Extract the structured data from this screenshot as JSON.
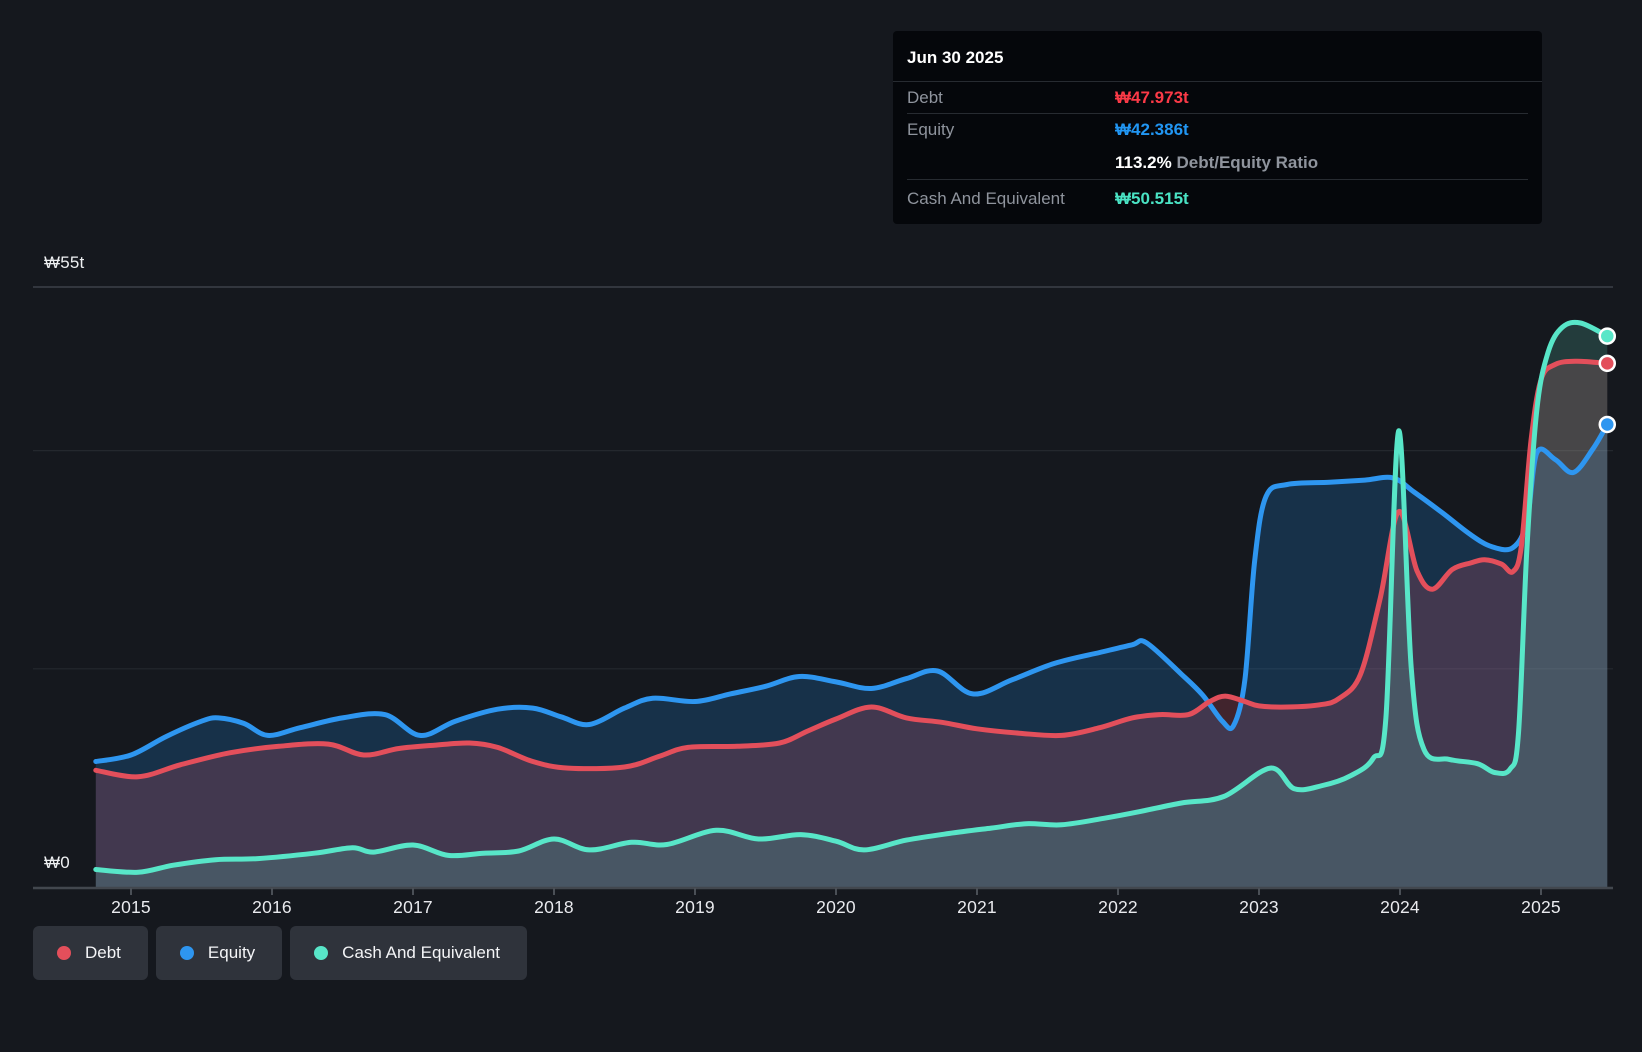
{
  "tooltip": {
    "title": "Jun 30 2025",
    "debt_label": "Debt",
    "debt_value": "₩47.973t",
    "equity_label": "Equity",
    "equity_value": "₩42.386t",
    "ratio_value": "113.2%",
    "ratio_label": "Debt/Equity Ratio",
    "cash_label": "Cash And Equivalent",
    "cash_value": "₩50.515t"
  },
  "legend": {
    "items": [
      {
        "id": "debt",
        "label": "Debt"
      },
      {
        "id": "equity",
        "label": "Equity"
      },
      {
        "id": "cash",
        "label": "Cash And Equivalent"
      }
    ]
  },
  "colors": {
    "background": "#15181e",
    "debt_line": "#e34f5b",
    "equity_line": "#2e96f0",
    "cash_line": "#58e6c8",
    "debt_fill": "rgba(224,80,100,0.22)",
    "equity_fill": "rgba(33,150,243,0.20)",
    "cash_fill": "rgba(100,225,200,0.18)",
    "debt_text": "#fb3a47",
    "equity_text": "#2196f3",
    "cash_text": "#4ae3c4",
    "grid_major": "#3c4148",
    "grid_minor": "#24282e",
    "axis_line": "#42474e",
    "marker_ring": "#ffffff"
  },
  "chart_data": {
    "type": "area",
    "xlabel": "",
    "ylabel": "₩ (trillions)",
    "xlim": [
      2014.72,
      2025.52
    ],
    "ylim": [
      0,
      55
    ],
    "grid": true,
    "legend_position": "bottom-left",
    "x_ticks": [
      2015,
      2016,
      2017,
      2018,
      2019,
      2020,
      2021,
      2022,
      2023,
      2024,
      2025
    ],
    "y_axis_labels": [
      {
        "label": "₩55t",
        "value": 55
      },
      {
        "label": "₩0",
        "value": 0
      }
    ],
    "gridline_values": [
      55,
      40,
      20
    ],
    "series": [
      {
        "name": "Equity",
        "color_key": "equity",
        "points": [
          [
            2014.75,
            11.5
          ],
          [
            2015.0,
            12.1
          ],
          [
            2015.25,
            13.8
          ],
          [
            2015.5,
            15.2
          ],
          [
            2015.62,
            15.5
          ],
          [
            2015.8,
            15.0
          ],
          [
            2015.97,
            13.9
          ],
          [
            2016.2,
            14.6
          ],
          [
            2016.5,
            15.5
          ],
          [
            2016.8,
            15.8
          ],
          [
            2017.05,
            13.9
          ],
          [
            2017.3,
            15.2
          ],
          [
            2017.6,
            16.3
          ],
          [
            2017.85,
            16.4
          ],
          [
            2018.05,
            15.6
          ],
          [
            2018.25,
            14.9
          ],
          [
            2018.5,
            16.4
          ],
          [
            2018.7,
            17.3
          ],
          [
            2019.0,
            17.0
          ],
          [
            2019.25,
            17.7
          ],
          [
            2019.5,
            18.4
          ],
          [
            2019.74,
            19.3
          ],
          [
            2020.0,
            18.8
          ],
          [
            2020.25,
            18.2
          ],
          [
            2020.5,
            19.1
          ],
          [
            2020.72,
            19.8
          ],
          [
            2020.97,
            17.7
          ],
          [
            2021.25,
            19.0
          ],
          [
            2021.55,
            20.5
          ],
          [
            2021.87,
            21.5
          ],
          [
            2022.1,
            22.2
          ],
          [
            2022.2,
            22.4
          ],
          [
            2022.45,
            19.5
          ],
          [
            2022.6,
            17.6
          ],
          [
            2022.74,
            15.2
          ],
          [
            2022.82,
            14.8
          ],
          [
            2022.9,
            19.0
          ],
          [
            2022.97,
            30.0
          ],
          [
            2023.05,
            35.8
          ],
          [
            2023.2,
            36.9
          ],
          [
            2023.5,
            37.1
          ],
          [
            2023.75,
            37.3
          ],
          [
            2023.95,
            37.5
          ],
          [
            2024.1,
            36.2
          ],
          [
            2024.3,
            34.3
          ],
          [
            2024.5,
            32.3
          ],
          [
            2024.65,
            31.2
          ],
          [
            2024.8,
            31.1
          ],
          [
            2024.9,
            33.5
          ],
          [
            2024.97,
            39.8
          ],
          [
            2025.1,
            39.2
          ],
          [
            2025.23,
            38.0
          ],
          [
            2025.37,
            40.2
          ],
          [
            2025.47,
            42.4
          ]
        ]
      },
      {
        "name": "Debt",
        "color_key": "debt",
        "points": [
          [
            2014.75,
            10.7
          ],
          [
            2015.05,
            10.1
          ],
          [
            2015.35,
            11.2
          ],
          [
            2015.7,
            12.3
          ],
          [
            2016.05,
            12.9
          ],
          [
            2016.4,
            13.1
          ],
          [
            2016.65,
            12.1
          ],
          [
            2016.9,
            12.7
          ],
          [
            2017.15,
            13.0
          ],
          [
            2017.4,
            13.2
          ],
          [
            2017.6,
            12.8
          ],
          [
            2017.85,
            11.5
          ],
          [
            2018.1,
            10.9
          ],
          [
            2018.5,
            11.0
          ],
          [
            2018.75,
            12.0
          ],
          [
            2018.95,
            12.8
          ],
          [
            2019.3,
            12.9
          ],
          [
            2019.6,
            13.2
          ],
          [
            2019.8,
            14.3
          ],
          [
            2020.0,
            15.4
          ],
          [
            2020.25,
            16.5
          ],
          [
            2020.5,
            15.5
          ],
          [
            2020.75,
            15.1
          ],
          [
            2021.0,
            14.5
          ],
          [
            2021.3,
            14.1
          ],
          [
            2021.6,
            13.9
          ],
          [
            2021.87,
            14.6
          ],
          [
            2022.1,
            15.5
          ],
          [
            2022.3,
            15.8
          ],
          [
            2022.5,
            15.8
          ],
          [
            2022.65,
            17.0
          ],
          [
            2022.76,
            17.5
          ],
          [
            2022.9,
            17.0
          ],
          [
            2023.0,
            16.6
          ],
          [
            2023.2,
            16.5
          ],
          [
            2023.43,
            16.7
          ],
          [
            2023.57,
            17.3
          ],
          [
            2023.72,
            19.5
          ],
          [
            2023.86,
            26.5
          ],
          [
            2023.99,
            34.4
          ],
          [
            2024.12,
            29.0
          ],
          [
            2024.23,
            27.3
          ],
          [
            2024.37,
            29.1
          ],
          [
            2024.5,
            29.7
          ],
          [
            2024.6,
            30.0
          ],
          [
            2024.72,
            29.6
          ],
          [
            2024.8,
            28.9
          ],
          [
            2024.86,
            31.2
          ],
          [
            2024.93,
            41.0
          ],
          [
            2025.0,
            46.5
          ],
          [
            2025.1,
            47.9
          ],
          [
            2025.25,
            48.2
          ],
          [
            2025.47,
            48.0
          ]
        ]
      },
      {
        "name": "Cash And Equivalent",
        "color_key": "cash",
        "points": [
          [
            2014.75,
            1.6
          ],
          [
            2015.05,
            1.35
          ],
          [
            2015.3,
            2.0
          ],
          [
            2015.6,
            2.5
          ],
          [
            2015.9,
            2.6
          ],
          [
            2016.3,
            3.1
          ],
          [
            2016.57,
            3.6
          ],
          [
            2016.72,
            3.2
          ],
          [
            2017.0,
            3.85
          ],
          [
            2017.25,
            2.9
          ],
          [
            2017.5,
            3.1
          ],
          [
            2017.75,
            3.3
          ],
          [
            2018.0,
            4.4
          ],
          [
            2018.25,
            3.4
          ],
          [
            2018.55,
            4.1
          ],
          [
            2018.8,
            3.9
          ],
          [
            2019.15,
            5.2
          ],
          [
            2019.45,
            4.4
          ],
          [
            2019.75,
            4.8
          ],
          [
            2020.0,
            4.2
          ],
          [
            2020.2,
            3.4
          ],
          [
            2020.5,
            4.3
          ],
          [
            2020.8,
            4.9
          ],
          [
            2021.1,
            5.4
          ],
          [
            2021.35,
            5.8
          ],
          [
            2021.6,
            5.7
          ],
          [
            2021.9,
            6.3
          ],
          [
            2022.15,
            6.9
          ],
          [
            2022.45,
            7.7
          ],
          [
            2022.75,
            8.3
          ],
          [
            2023.08,
            10.9
          ],
          [
            2023.25,
            9.0
          ],
          [
            2023.45,
            9.3
          ],
          [
            2023.65,
            10.2
          ],
          [
            2023.81,
            11.8
          ],
          [
            2023.9,
            15.5
          ],
          [
            2023.99,
            41.8
          ],
          [
            2024.08,
            20.0
          ],
          [
            2024.17,
            12.6
          ],
          [
            2024.35,
            11.7
          ],
          [
            2024.55,
            11.3
          ],
          [
            2024.67,
            10.5
          ],
          [
            2024.78,
            10.8
          ],
          [
            2024.84,
            14.0
          ],
          [
            2024.9,
            31.0
          ],
          [
            2024.97,
            43.7
          ],
          [
            2025.05,
            49.0
          ],
          [
            2025.15,
            51.3
          ],
          [
            2025.28,
            51.7
          ],
          [
            2025.47,
            50.5
          ]
        ]
      }
    ]
  }
}
